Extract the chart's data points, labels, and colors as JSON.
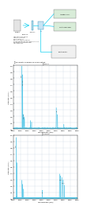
{
  "title_a": "ⓐ schematic diagram of a LIBS set up",
  "title_b": "ⓑ 80 fs",
  "title_c": "ⓒ 200 ps",
  "spectrum_color": "#5BC8E8",
  "background_color": "#ffffff",
  "grid_color": "#bbccdd",
  "xmin": 4500,
  "xmax": 9000,
  "ymin": 0.0,
  "ymax": 1.0,
  "xlabel": "Wavelength (nm)",
  "ylabel": "Intensity (a.u.)",
  "yticks": [
    0.0,
    0.1,
    0.2,
    0.3,
    0.4,
    0.5,
    0.6,
    0.7,
    0.8,
    0.9,
    1.0
  ],
  "xticks": [
    4500,
    5000,
    5500,
    6000,
    6500,
    7000,
    7500,
    8000,
    8500,
    9000
  ]
}
